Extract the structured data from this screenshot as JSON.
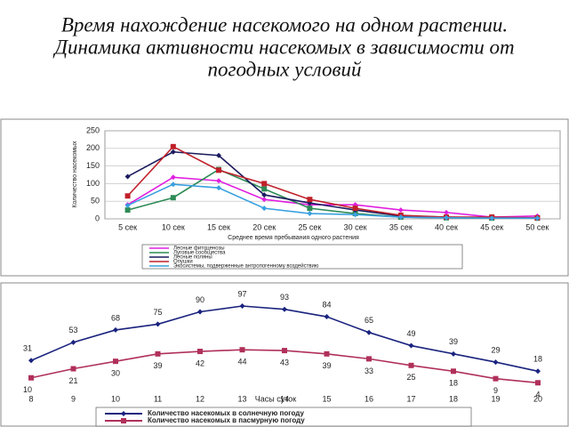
{
  "title": [
    "Время нахождение насекомого на одном растении.",
    "Динамика активности насекомых в зависимости от",
    "погодных условий"
  ],
  "chart_data": [
    {
      "type": "line",
      "y_label": "Количество насекомых",
      "x_label": "Среднее время пребывания одного растения",
      "categories": [
        "5 сек",
        "10 сек",
        "15 сек",
        "20 сек",
        "25 сек",
        "30 сек",
        "35 сек",
        "40 сек",
        "45 сек",
        "50 сек"
      ],
      "ylim": [
        0,
        250
      ],
      "yticks": [
        0,
        50,
        100,
        150,
        200,
        250
      ],
      "series": [
        {
          "name": "Лесные фитоценозы",
          "color": "#e020e0",
          "values": [
            40,
            118,
            108,
            55,
            40,
            40,
            25,
            18,
            5,
            8
          ]
        },
        {
          "name": "Луговые сообщества",
          "color": "#2e8b57",
          "values": [
            25,
            60,
            140,
            85,
            30,
            15,
            5,
            3,
            2,
            2
          ]
        },
        {
          "name": "Лесные поляны",
          "color": "#1a1a5e",
          "values": [
            120,
            190,
            180,
            68,
            45,
            25,
            8,
            5,
            3,
            2
          ]
        },
        {
          "name": "Опушки",
          "color": "#c0202a",
          "values": [
            65,
            205,
            138,
            100,
            55,
            30,
            10,
            5,
            5,
            3
          ]
        },
        {
          "name": "Экосистемы, подверженные антропогенному воздействию",
          "color": "#3aa0e0",
          "values": [
            38,
            98,
            88,
            30,
            15,
            12,
            5,
            3,
            2,
            2
          ]
        }
      ]
    },
    {
      "type": "line",
      "x_label": "Часы суток",
      "categories": [
        "8",
        "9",
        "10",
        "11",
        "12",
        "13",
        "14",
        "15",
        "16",
        "17",
        "18",
        "19",
        "20"
      ],
      "series": [
        {
          "name": "Количество насекомых в солнечную погоду",
          "color": "#1a237e",
          "values": [
            31,
            53,
            68,
            75,
            90,
            97,
            93,
            84,
            65,
            49,
            39,
            29,
            18
          ]
        },
        {
          "name": "Количество насекомых в пасмурную погоду",
          "color": "#b0305a",
          "values": [
            10,
            21,
            30,
            39,
            42,
            44,
            43,
            39,
            33,
            25,
            18,
            9,
            4
          ]
        }
      ]
    }
  ]
}
